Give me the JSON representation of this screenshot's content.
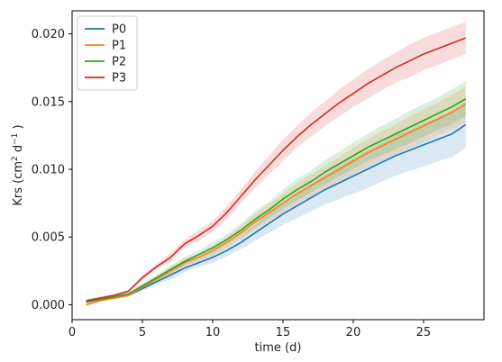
{
  "chart_data": {
    "type": "line",
    "xlabel": "time (d)",
    "ylabel_parts": [
      "Krs (cm",
      "2",
      " d",
      "−1",
      " )"
    ],
    "xlim": [
      0,
      29.3
    ],
    "ylim": [
      -0.0011,
      0.0217
    ],
    "xticks": [
      0,
      5,
      10,
      15,
      20,
      25
    ],
    "xtick_labels": [
      "0",
      "5",
      "10",
      "15",
      "20",
      "25"
    ],
    "yticks": [
      0.0,
      0.005,
      0.01,
      0.015,
      0.02
    ],
    "ytick_labels": [
      "0.000",
      "0.005",
      "0.010",
      "0.015",
      "0.020"
    ],
    "grid": false,
    "legend_position": "top-left",
    "x": [
      1,
      2,
      3,
      4,
      5,
      6,
      7,
      8,
      9,
      10,
      11,
      12,
      13,
      14,
      15,
      16,
      17,
      18,
      19,
      20,
      21,
      22,
      23,
      24,
      25,
      26,
      27,
      28
    ],
    "series": [
      {
        "name": "P0",
        "color": "#1f77b4",
        "values": [
          0.0002,
          0.0004,
          0.0005,
          0.0007,
          0.0012,
          0.0017,
          0.0022,
          0.0027,
          0.0031,
          0.0035,
          0.004,
          0.0046,
          0.0053,
          0.006,
          0.0067,
          0.0073,
          0.0079,
          0.0085,
          0.009,
          0.0095,
          0.01,
          0.0105,
          0.011,
          0.0114,
          0.0118,
          0.0122,
          0.0126,
          0.0133
        ],
        "band": [
          0.0001,
          0.0001,
          0.0001,
          0.0001,
          0.0002,
          0.0002,
          0.0003,
          0.0003,
          0.0003,
          0.0004,
          0.0004,
          0.0005,
          0.0006,
          0.0007,
          0.0008,
          0.0009,
          0.001,
          0.0011,
          0.0012,
          0.0013,
          0.0014,
          0.0014,
          0.0015,
          0.0015,
          0.0016,
          0.0016,
          0.0017,
          0.0017
        ]
      },
      {
        "name": "P1",
        "color": "#ff7f0e",
        "values": [
          0.0,
          0.0003,
          0.0005,
          0.0007,
          0.0013,
          0.0019,
          0.0025,
          0.0031,
          0.0035,
          0.004,
          0.0046,
          0.0053,
          0.0061,
          0.0068,
          0.0075,
          0.0082,
          0.0088,
          0.0094,
          0.01,
          0.0106,
          0.0112,
          0.0117,
          0.0122,
          0.0127,
          0.0132,
          0.0137,
          0.0142,
          0.0148
        ],
        "band": [
          0.0001,
          0.0001,
          0.0001,
          0.0001,
          0.0002,
          0.0002,
          0.0003,
          0.0003,
          0.0003,
          0.0004,
          0.0004,
          0.0005,
          0.0006,
          0.0006,
          0.0007,
          0.0008,
          0.0008,
          0.0009,
          0.0009,
          0.001,
          0.001,
          0.0011,
          0.0011,
          0.0012,
          0.0012,
          0.0012,
          0.0013,
          0.0013
        ]
      },
      {
        "name": "P2",
        "color": "#2ca02c",
        "values": [
          0.0002,
          0.0004,
          0.0006,
          0.0008,
          0.0014,
          0.002,
          0.0026,
          0.0032,
          0.0037,
          0.0042,
          0.0048,
          0.0055,
          0.0063,
          0.007,
          0.0078,
          0.0085,
          0.0091,
          0.0098,
          0.0104,
          0.011,
          0.0116,
          0.0121,
          0.0126,
          0.0131,
          0.0136,
          0.0141,
          0.0146,
          0.0152
        ],
        "band": [
          0.0001,
          0.0001,
          0.0001,
          0.0001,
          0.0002,
          0.0002,
          0.0003,
          0.0003,
          0.0003,
          0.0004,
          0.0004,
          0.0005,
          0.0006,
          0.0006,
          0.0007,
          0.0008,
          0.0008,
          0.0009,
          0.0009,
          0.001,
          0.001,
          0.0011,
          0.0011,
          0.0012,
          0.0012,
          0.0012,
          0.0013,
          0.0013
        ]
      },
      {
        "name": "P3",
        "color": "#d62728",
        "values": [
          0.0003,
          0.0005,
          0.0007,
          0.001,
          0.002,
          0.0028,
          0.0035,
          0.0045,
          0.0051,
          0.0058,
          0.0068,
          0.008,
          0.0092,
          0.0103,
          0.0114,
          0.0124,
          0.0133,
          0.0141,
          0.0149,
          0.0156,
          0.0163,
          0.0169,
          0.0175,
          0.018,
          0.0185,
          0.0189,
          0.0193,
          0.0197
        ],
        "band": [
          0.0001,
          0.0001,
          0.0001,
          0.0001,
          0.0002,
          0.0002,
          0.0003,
          0.0003,
          0.0004,
          0.0004,
          0.0005,
          0.0005,
          0.0006,
          0.0007,
          0.0008,
          0.0008,
          0.0009,
          0.0009,
          0.001,
          0.001,
          0.0011,
          0.0011,
          0.0011,
          0.0012,
          0.0012,
          0.0012,
          0.0012,
          0.0012
        ]
      }
    ]
  }
}
